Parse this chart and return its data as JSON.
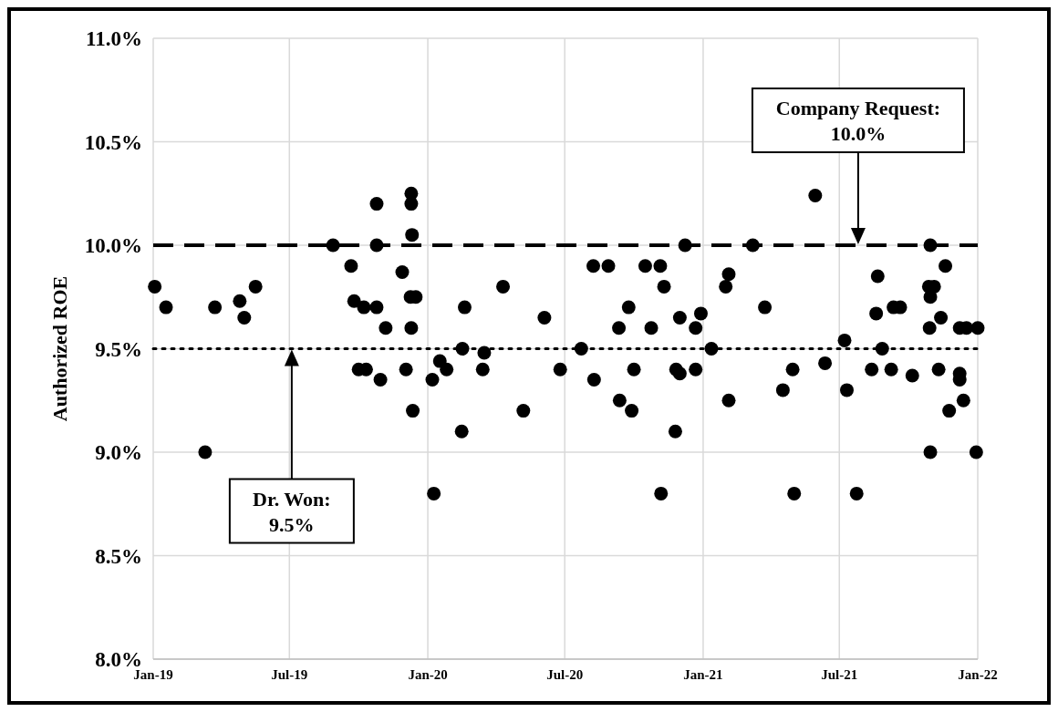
{
  "chart_data": {
    "type": "scatter",
    "ylabel": "Authorized ROE",
    "xlim": [
      "2019-01-01",
      "2022-01-01"
    ],
    "xticks": [
      {
        "value": "2019-01-01",
        "label": "Jan-19"
      },
      {
        "value": "2019-07-01",
        "label": "Jul-19"
      },
      {
        "value": "2020-01-01",
        "label": "Jan-20"
      },
      {
        "value": "2020-07-01",
        "label": "Jul-20"
      },
      {
        "value": "2021-01-01",
        "label": "Jan-21"
      },
      {
        "value": "2021-07-01",
        "label": "Jul-21"
      },
      {
        "value": "2022-01-01",
        "label": "Jan-22"
      }
    ],
    "ylim": [
      8,
      11
    ],
    "yticks": [
      {
        "value": 8,
        "label": "8.0%"
      },
      {
        "value": 8.5,
        "label": "8.5%"
      },
      {
        "value": 9,
        "label": "9.0%"
      },
      {
        "value": 9.5,
        "label": "9.5%"
      },
      {
        "value": 10,
        "label": "10.0%"
      },
      {
        "value": 10.5,
        "label": "10.5%"
      },
      {
        "value": 11,
        "label": "11.0%"
      }
    ],
    "grid": true,
    "marker": "circle",
    "series": [
      {
        "color": "#000000",
        "x": [
          "2019-01-03",
          "2019-01-18",
          "2019-03-11",
          "2019-03-24",
          "2019-04-26",
          "2019-05-02",
          "2019-05-17",
          "2019-08-28",
          "2019-09-21",
          "2019-09-25",
          "2019-10-08",
          "2019-10-25",
          "2019-10-25",
          "2019-10-25",
          "2019-11-06",
          "2019-11-28",
          "2019-12-10",
          "2019-12-10",
          "2019-12-11",
          "2019-12-09",
          "2019-12-16",
          "2019-12-10",
          "2019-10-01",
          "2019-10-11",
          "2019-10-30",
          "2019-12-03",
          "2019-12-12",
          "2020-01-07",
          "2020-01-17",
          "2020-01-26",
          "2020-01-09",
          "2020-02-16",
          "2020-02-19",
          "2020-02-15",
          "2020-03-16",
          "2020-03-14",
          "2020-04-10",
          "2020-05-07",
          "2020-06-04",
          "2020-06-25",
          "2020-07-23",
          "2020-08-08",
          "2020-08-28",
          "2020-08-09",
          "2020-09-11",
          "2020-09-24",
          "2020-10-01",
          "2020-09-12",
          "2020-09-28",
          "2020-10-16",
          "2020-11-05",
          "2020-10-24",
          "2020-11-10",
          "2020-11-25",
          "2020-11-06",
          "2020-12-01",
          "2020-11-26",
          "2020-12-01",
          "2020-12-08",
          "2020-12-22",
          "2020-12-29",
          "2020-12-22",
          "2021-01-12",
          "2021-01-31",
          "2021-02-04",
          "2021-02-04",
          "2021-03-08",
          "2021-03-24",
          "2021-04-17",
          "2021-04-30",
          "2021-05-02",
          "2021-05-30",
          "2021-06-12",
          "2021-07-08",
          "2021-07-11",
          "2021-07-24",
          "2021-08-13",
          "2021-08-21",
          "2021-08-19",
          "2021-08-27",
          "2021-09-08",
          "2021-09-11",
          "2021-09-20",
          "2021-10-06",
          "2021-10-30",
          "2021-10-28",
          "2021-11-04",
          "2021-10-30",
          "2021-10-29",
          "2021-10-30",
          "2021-11-13",
          "2021-11-19",
          "2021-11-10",
          "2021-11-24",
          "2021-12-08",
          "2021-12-17",
          "2021-12-08",
          "2021-12-08",
          "2021-12-13",
          "2022-01-01",
          "2021-12-30"
        ],
        "values": [
          9.8,
          9.7,
          9.0,
          9.7,
          9.73,
          9.65,
          9.8,
          10.0,
          9.9,
          9.73,
          9.7,
          9.7,
          10.2,
          10.0,
          9.6,
          9.87,
          10.25,
          10.2,
          10.05,
          9.75,
          9.75,
          9.6,
          9.4,
          9.4,
          9.35,
          9.4,
          9.2,
          9.35,
          9.44,
          9.4,
          8.8,
          9.5,
          9.7,
          9.1,
          9.48,
          9.4,
          9.8,
          9.2,
          9.65,
          9.4,
          9.5,
          9.9,
          9.9,
          9.35,
          9.6,
          9.7,
          9.4,
          9.25,
          9.2,
          9.9,
          9.9,
          9.6,
          9.8,
          9.1,
          8.8,
          9.65,
          9.4,
          9.38,
          10.0,
          9.6,
          9.67,
          9.4,
          9.5,
          9.8,
          9.86,
          9.25,
          10.0,
          9.7,
          9.3,
          9.4,
          8.8,
          10.24,
          9.43,
          9.54,
          9.3,
          8.8,
          9.4,
          9.85,
          9.67,
          9.5,
          9.4,
          9.7,
          9.7,
          9.37,
          10.0,
          9.8,
          9.8,
          9.75,
          9.6,
          9.0,
          9.65,
          9.9,
          9.4,
          9.2,
          9.6,
          9.6,
          9.38,
          9.35,
          9.25,
          9.6,
          9.0
        ]
      }
    ],
    "ref_lines": [
      {
        "axis": "y",
        "value": 10,
        "color": "#000000",
        "line_style": "dashed"
      },
      {
        "axis": "y",
        "value": 9.5,
        "color": "#000000",
        "line_style": "dotted"
      }
    ],
    "annotations": [
      "Company Request:\n10.0%",
      "Dr. Won:\n9.5%"
    ]
  }
}
